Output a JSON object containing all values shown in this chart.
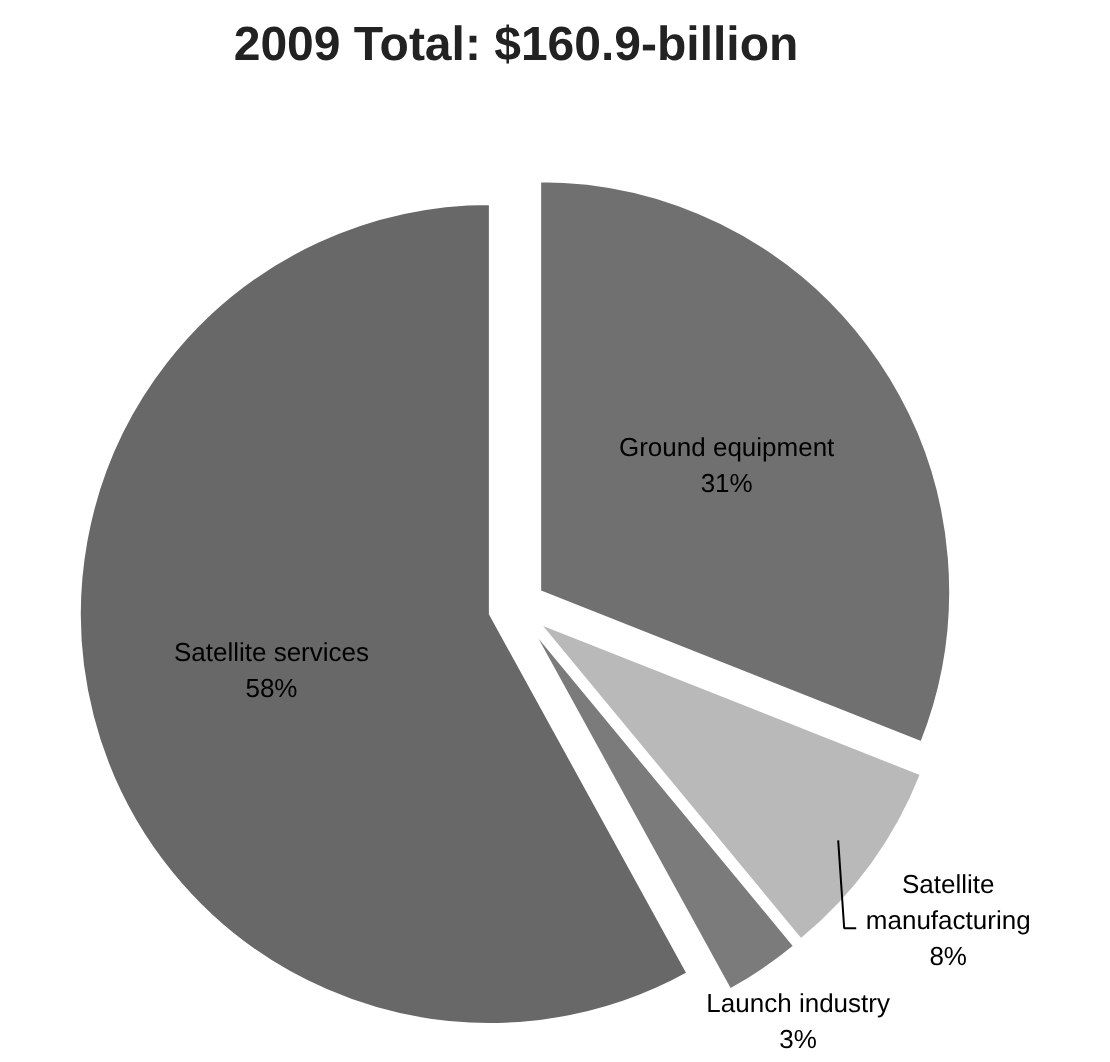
{
  "chart_data": {
    "type": "pie",
    "title": "2009 Total: $160.9-billion",
    "categories": [
      "Ground equipment",
      "Satellite manufacturing",
      "Launch industry",
      "Satellite services"
    ],
    "values": [
      31,
      8,
      3,
      58
    ],
    "colors": [
      "#707070",
      "#b9b9b9",
      "#7b7b7b",
      "#686868"
    ],
    "value_labels": [
      "31%",
      "8%",
      "3%",
      "58%"
    ]
  }
}
